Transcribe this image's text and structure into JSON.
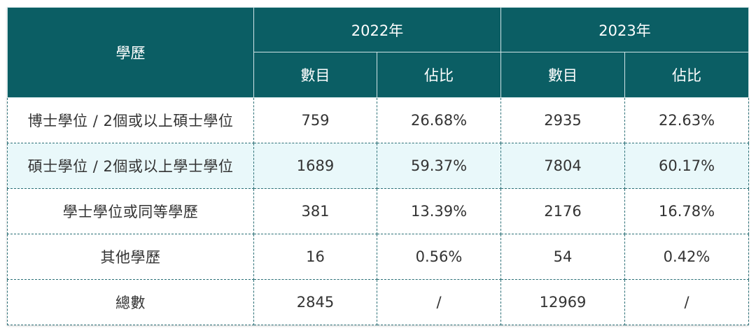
{
  "table": {
    "header": {
      "row_label": "學歷",
      "years": [
        "2022年",
        "2023年"
      ],
      "sub": [
        "數目",
        "佔比",
        "數目",
        "佔比"
      ]
    },
    "rows": [
      {
        "label": "博士學位 / 2個或以上碩士學位",
        "c2022": "759",
        "p2022": "26.68%",
        "c2023": "2935",
        "p2023": "22.63%"
      },
      {
        "label": "碩士學位 / 2個或以上學士學位",
        "c2022": "1689",
        "p2022": "59.37%",
        "c2023": "7804",
        "p2023": "60.17%"
      },
      {
        "label": "學士學位或同等學歷",
        "c2022": "381",
        "p2022": "13.39%",
        "c2023": "2176",
        "p2023": "16.78%"
      },
      {
        "label": "其他學歷",
        "c2022": "16",
        "p2022": "0.56%",
        "c2023": "54",
        "p2023": "0.42%"
      },
      {
        "label": "總數",
        "c2022": "2845",
        "p2022": "/",
        "c2023": "12969",
        "p2023": "/"
      }
    ]
  },
  "colors": {
    "header_bg": "#0b5e64",
    "header_text": "#ffffff",
    "highlight_row_bg": "#e9f8fa",
    "cell_border": "#2b6f76"
  }
}
